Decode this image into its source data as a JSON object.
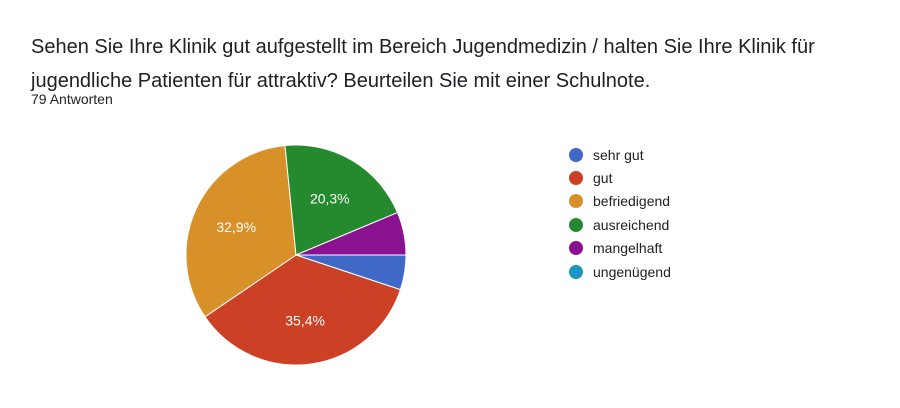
{
  "question": "Sehen Sie Ihre Klinik gut aufgestellt im Bereich Jugendmedizin / halten Sie Ihre Klinik für jugendliche Patienten für attraktiv? Beurteilen Sie mit einer Schulnote.",
  "response_count": "79 Antworten",
  "chart_data": {
    "type": "pie",
    "categories": [
      "sehr gut",
      "gut",
      "befriedigend",
      "ausreichend",
      "mangelhaft",
      "ungenügend"
    ],
    "values": [
      5.1,
      35.4,
      32.9,
      20.3,
      6.3,
      0.0
    ],
    "colors": [
      "#3f68c7",
      "#cc4125",
      "#d89028",
      "#258a2e",
      "#8a1290",
      "#1f93c2"
    ],
    "data_labels": [
      "",
      "35,4%",
      "32,9%",
      "20,3%",
      "",
      ""
    ],
    "legend_position": "right",
    "start": "3 o'clock, clockwise"
  }
}
